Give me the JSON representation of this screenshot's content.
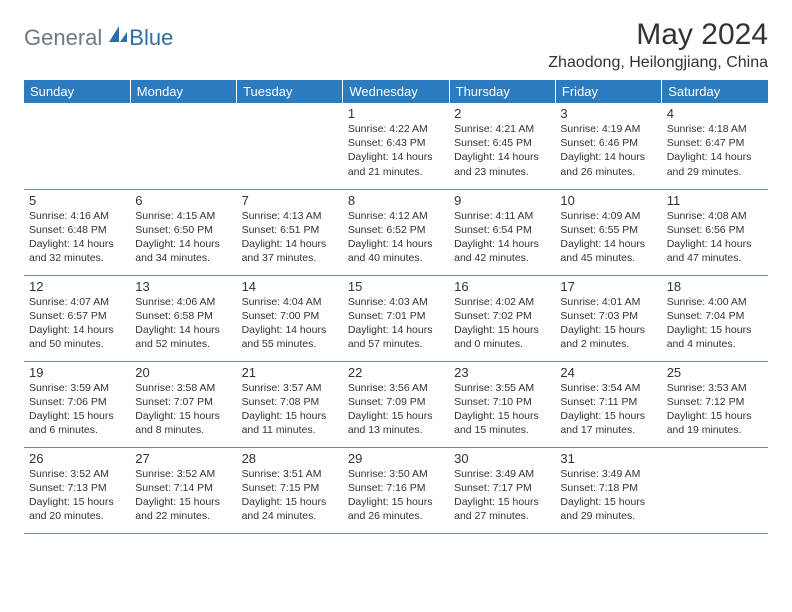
{
  "brand": {
    "part1": "General",
    "part2": "Blue"
  },
  "title": "May 2024",
  "location": "Zhaodong, Heilongjiang, China",
  "colors": {
    "header_bg": "#2c7bbf",
    "header_text": "#ffffff",
    "border": "#6b8aa5",
    "brand_gray": "#6b7a85",
    "brand_blue": "#2c6fa8",
    "text": "#333333",
    "page_bg": "#ffffff"
  },
  "weekdays": [
    "Sunday",
    "Monday",
    "Tuesday",
    "Wednesday",
    "Thursday",
    "Friday",
    "Saturday"
  ],
  "weeks": [
    [
      null,
      null,
      null,
      {
        "d": "1",
        "sr": "4:22 AM",
        "ss": "6:43 PM",
        "dl1": "14 hours",
        "dl2": "and 21 minutes."
      },
      {
        "d": "2",
        "sr": "4:21 AM",
        "ss": "6:45 PM",
        "dl1": "14 hours",
        "dl2": "and 23 minutes."
      },
      {
        "d": "3",
        "sr": "4:19 AM",
        "ss": "6:46 PM",
        "dl1": "14 hours",
        "dl2": "and 26 minutes."
      },
      {
        "d": "4",
        "sr": "4:18 AM",
        "ss": "6:47 PM",
        "dl1": "14 hours",
        "dl2": "and 29 minutes."
      }
    ],
    [
      {
        "d": "5",
        "sr": "4:16 AM",
        "ss": "6:48 PM",
        "dl1": "14 hours",
        "dl2": "and 32 minutes."
      },
      {
        "d": "6",
        "sr": "4:15 AM",
        "ss": "6:50 PM",
        "dl1": "14 hours",
        "dl2": "and 34 minutes."
      },
      {
        "d": "7",
        "sr": "4:13 AM",
        "ss": "6:51 PM",
        "dl1": "14 hours",
        "dl2": "and 37 minutes."
      },
      {
        "d": "8",
        "sr": "4:12 AM",
        "ss": "6:52 PM",
        "dl1": "14 hours",
        "dl2": "and 40 minutes."
      },
      {
        "d": "9",
        "sr": "4:11 AM",
        "ss": "6:54 PM",
        "dl1": "14 hours",
        "dl2": "and 42 minutes."
      },
      {
        "d": "10",
        "sr": "4:09 AM",
        "ss": "6:55 PM",
        "dl1": "14 hours",
        "dl2": "and 45 minutes."
      },
      {
        "d": "11",
        "sr": "4:08 AM",
        "ss": "6:56 PM",
        "dl1": "14 hours",
        "dl2": "and 47 minutes."
      }
    ],
    [
      {
        "d": "12",
        "sr": "4:07 AM",
        "ss": "6:57 PM",
        "dl1": "14 hours",
        "dl2": "and 50 minutes."
      },
      {
        "d": "13",
        "sr": "4:06 AM",
        "ss": "6:58 PM",
        "dl1": "14 hours",
        "dl2": "and 52 minutes."
      },
      {
        "d": "14",
        "sr": "4:04 AM",
        "ss": "7:00 PM",
        "dl1": "14 hours",
        "dl2": "and 55 minutes."
      },
      {
        "d": "15",
        "sr": "4:03 AM",
        "ss": "7:01 PM",
        "dl1": "14 hours",
        "dl2": "and 57 minutes."
      },
      {
        "d": "16",
        "sr": "4:02 AM",
        "ss": "7:02 PM",
        "dl1": "15 hours",
        "dl2": "and 0 minutes."
      },
      {
        "d": "17",
        "sr": "4:01 AM",
        "ss": "7:03 PM",
        "dl1": "15 hours",
        "dl2": "and 2 minutes."
      },
      {
        "d": "18",
        "sr": "4:00 AM",
        "ss": "7:04 PM",
        "dl1": "15 hours",
        "dl2": "and 4 minutes."
      }
    ],
    [
      {
        "d": "19",
        "sr": "3:59 AM",
        "ss": "7:06 PM",
        "dl1": "15 hours",
        "dl2": "and 6 minutes."
      },
      {
        "d": "20",
        "sr": "3:58 AM",
        "ss": "7:07 PM",
        "dl1": "15 hours",
        "dl2": "and 8 minutes."
      },
      {
        "d": "21",
        "sr": "3:57 AM",
        "ss": "7:08 PM",
        "dl1": "15 hours",
        "dl2": "and 11 minutes."
      },
      {
        "d": "22",
        "sr": "3:56 AM",
        "ss": "7:09 PM",
        "dl1": "15 hours",
        "dl2": "and 13 minutes."
      },
      {
        "d": "23",
        "sr": "3:55 AM",
        "ss": "7:10 PM",
        "dl1": "15 hours",
        "dl2": "and 15 minutes."
      },
      {
        "d": "24",
        "sr": "3:54 AM",
        "ss": "7:11 PM",
        "dl1": "15 hours",
        "dl2": "and 17 minutes."
      },
      {
        "d": "25",
        "sr": "3:53 AM",
        "ss": "7:12 PM",
        "dl1": "15 hours",
        "dl2": "and 19 minutes."
      }
    ],
    [
      {
        "d": "26",
        "sr": "3:52 AM",
        "ss": "7:13 PM",
        "dl1": "15 hours",
        "dl2": "and 20 minutes."
      },
      {
        "d": "27",
        "sr": "3:52 AM",
        "ss": "7:14 PM",
        "dl1": "15 hours",
        "dl2": "and 22 minutes."
      },
      {
        "d": "28",
        "sr": "3:51 AM",
        "ss": "7:15 PM",
        "dl1": "15 hours",
        "dl2": "and 24 minutes."
      },
      {
        "d": "29",
        "sr": "3:50 AM",
        "ss": "7:16 PM",
        "dl1": "15 hours",
        "dl2": "and 26 minutes."
      },
      {
        "d": "30",
        "sr": "3:49 AM",
        "ss": "7:17 PM",
        "dl1": "15 hours",
        "dl2": "and 27 minutes."
      },
      {
        "d": "31",
        "sr": "3:49 AM",
        "ss": "7:18 PM",
        "dl1": "15 hours",
        "dl2": "and 29 minutes."
      },
      null
    ]
  ],
  "labels": {
    "sunrise": "Sunrise:",
    "sunset": "Sunset:",
    "daylight": "Daylight:"
  }
}
